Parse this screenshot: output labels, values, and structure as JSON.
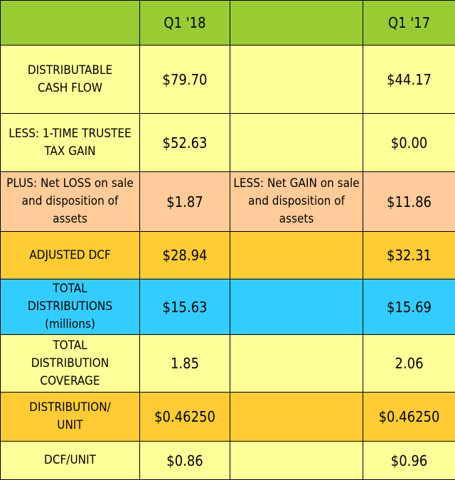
{
  "colors": {
    "header_bg": "#99cc33",
    "light_yellow": "#ffff99",
    "peach": "#ffcc99",
    "orange": "#ffcc33",
    "cyan": "#33ccff",
    "border": "#000000"
  },
  "header": {
    "corner": "",
    "col1": "Q1 '18",
    "mid": "",
    "col2": "Q1 '17"
  },
  "rows": [
    {
      "label": "DISTRIBUTABLE CASH FLOW",
      "q1_18": "$79.70",
      "mid": "",
      "q1_17": "$44.17",
      "color": "#ffff99"
    },
    {
      "label": "LESS: 1-TIME TRUSTEE TAX GAIN",
      "q1_18": "$52.63",
      "mid": "",
      "q1_17": "$0.00",
      "color": "#ffff99"
    },
    {
      "label": "PLUS: Net LOSS on sale and disposition of assets",
      "q1_18": "$1.87",
      "mid": "LESS: Net GAIN on sale and disposition of assets",
      "q1_17": "$11.86",
      "color": "#ffcc99"
    },
    {
      "label": "ADJUSTED DCF",
      "q1_18": "$28.94",
      "mid": "",
      "q1_17": "$32.31",
      "color": "#ffcc33"
    },
    {
      "label": "TOTAL DISTRIBUTIONS (millions)",
      "q1_18": "$15.63",
      "mid": "",
      "q1_17": "$15.69",
      "color": "#33ccff"
    },
    {
      "label": "TOTAL DISTRIBUTION COVERAGE",
      "q1_18": "1.85",
      "mid": "",
      "q1_17": "2.06",
      "color": "#ffff99"
    },
    {
      "label": "DISTRIBUTION/ UNIT",
      "q1_18": "$0.46250",
      "mid": "",
      "q1_17": "$0.46250",
      "color": "#ffcc33"
    },
    {
      "label": "DCF/UNIT",
      "q1_18": "$0.86",
      "mid": "",
      "q1_17": "$0.96",
      "color": "#ffff99"
    }
  ]
}
